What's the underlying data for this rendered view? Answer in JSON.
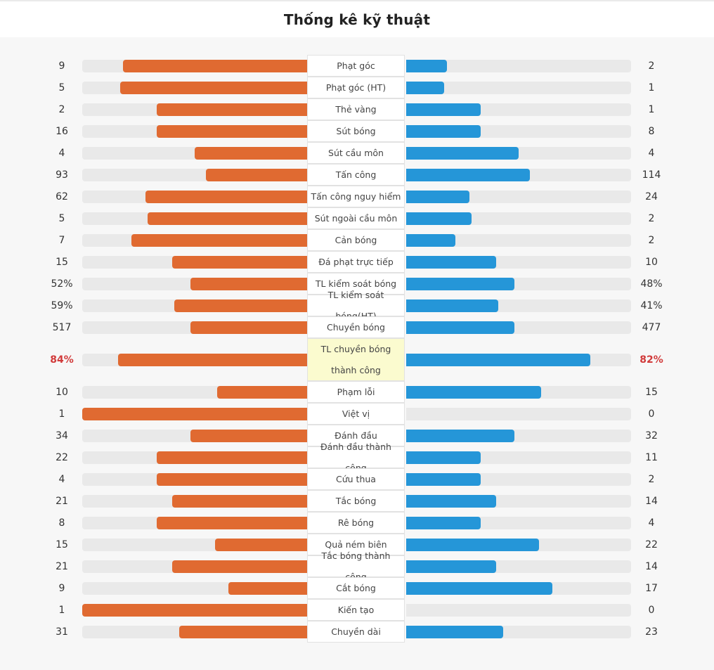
{
  "header": {
    "title": "Thống kê kỹ thuật"
  },
  "colors": {
    "home": "#e06a31",
    "away": "#2596d8",
    "highlight_value": "#d13a3a",
    "highlight_label_bg": "#fbfbcf",
    "track": "#e9e9e9"
  },
  "stats": [
    {
      "label": "Phạt góc",
      "home": "9",
      "away": "2",
      "home_share": 0.82,
      "away_share": 0.18
    },
    {
      "label": "Phạt góc (HT)",
      "home": "5",
      "away": "1",
      "home_share": 0.83,
      "away_share": 0.17
    },
    {
      "label": "Thẻ vàng",
      "home": "2",
      "away": "1",
      "home_share": 0.67,
      "away_share": 0.33
    },
    {
      "label": "Sút bóng",
      "home": "16",
      "away": "8",
      "home_share": 0.67,
      "away_share": 0.33
    },
    {
      "label": "Sút cầu môn",
      "home": "4",
      "away": "4",
      "home_share": 0.5,
      "away_share": 0.5
    },
    {
      "label": "Tấn công",
      "home": "93",
      "away": "114",
      "home_share": 0.45,
      "away_share": 0.55
    },
    {
      "label": "Tấn công nguy hiểm",
      "home": "62",
      "away": "24",
      "home_share": 0.72,
      "away_share": 0.28
    },
    {
      "label": "Sút ngoài cầu môn",
      "home": "5",
      "away": "2",
      "home_share": 0.71,
      "away_share": 0.29
    },
    {
      "label": "Cản bóng",
      "home": "7",
      "away": "2",
      "home_share": 0.78,
      "away_share": 0.22
    },
    {
      "label": "Đá phạt trực tiếp",
      "home": "15",
      "away": "10",
      "home_share": 0.6,
      "away_share": 0.4
    },
    {
      "label": "TL kiểm soát bóng",
      "home": "52%",
      "away": "48%",
      "home_share": 0.52,
      "away_share": 0.48
    },
    {
      "label": "TL kiểm soát bóng(HT)",
      "home": "59%",
      "away": "41%",
      "home_share": 0.59,
      "away_share": 0.41
    },
    {
      "label": "Chuyền bóng",
      "home": "517",
      "away": "477",
      "home_share": 0.52,
      "away_share": 0.48
    },
    {
      "label": "TL chuyền bóng thành công",
      "home": "84%",
      "away": "82%",
      "home_share": 0.84,
      "away_share": 0.82,
      "highlight": true
    },
    {
      "label": "Phạm lỗi",
      "home": "10",
      "away": "15",
      "home_share": 0.4,
      "away_share": 0.6
    },
    {
      "label": "Việt vị",
      "home": "1",
      "away": "0",
      "home_share": 1.0,
      "away_share": 0.0
    },
    {
      "label": "Đánh đầu",
      "home": "34",
      "away": "32",
      "home_share": 0.52,
      "away_share": 0.48
    },
    {
      "label": "Đánh đầu thành công",
      "home": "22",
      "away": "11",
      "home_share": 0.67,
      "away_share": 0.33
    },
    {
      "label": "Cứu thua",
      "home": "4",
      "away": "2",
      "home_share": 0.67,
      "away_share": 0.33
    },
    {
      "label": "Tắc bóng",
      "home": "21",
      "away": "14",
      "home_share": 0.6,
      "away_share": 0.4
    },
    {
      "label": "Rê bóng",
      "home": "8",
      "away": "4",
      "home_share": 0.67,
      "away_share": 0.33
    },
    {
      "label": "Quả ném biên",
      "home": "15",
      "away": "22",
      "home_share": 0.41,
      "away_share": 0.59
    },
    {
      "label": "Tắc bóng thành công",
      "home": "21",
      "away": "14",
      "home_share": 0.6,
      "away_share": 0.4
    },
    {
      "label": "Cắt bóng",
      "home": "9",
      "away": "17",
      "home_share": 0.35,
      "away_share": 0.65
    },
    {
      "label": "Kiến tạo",
      "home": "1",
      "away": "0",
      "home_share": 1.0,
      "away_share": 0.0
    },
    {
      "label": "Chuyền dài",
      "home": "31",
      "away": "23",
      "home_share": 0.57,
      "away_share": 0.43
    }
  ]
}
